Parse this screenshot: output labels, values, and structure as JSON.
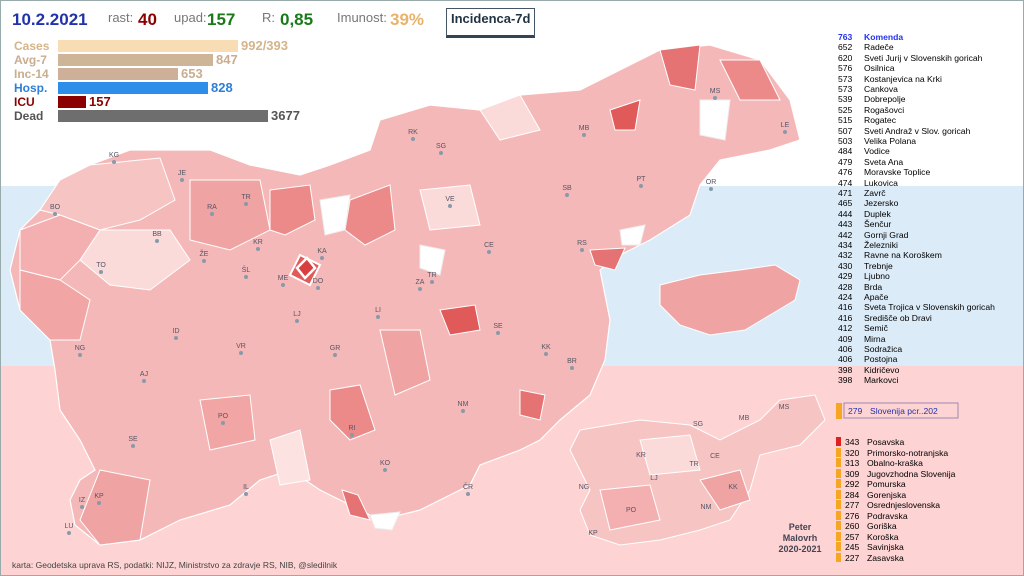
{
  "header": {
    "date": "10.2.2021",
    "rast_label": "rast:",
    "rast_value": "40",
    "upad_label": "upad:",
    "upad_value": "157",
    "r_label": "R:",
    "r_value": "0,85",
    "imunost_label": "Imunost:",
    "imunost_value": "39%",
    "incidence_button": "Incidenca-7d"
  },
  "stats": [
    {
      "label": "Cases",
      "value": "992/393",
      "fraction": 0.72,
      "color": "#f8ddb4",
      "label_color": "#d4b48a"
    },
    {
      "label": "Avg-7",
      "value": "847",
      "fraction": 0.62,
      "color": "#cfb598",
      "label_color": "#c9ad8e"
    },
    {
      "label": "Inc-14",
      "value": "653",
      "fraction": 0.48,
      "color": "#cdb097",
      "label_color": "#c9ad8e"
    },
    {
      "label": "Hosp.",
      "value": "828",
      "fraction": 0.6,
      "color": "#2d8de8",
      "label_color": "#2d7fd8"
    },
    {
      "label": "ICU",
      "value": "157",
      "fraction": 0.11,
      "color": "#8b0000",
      "label_color": "#8b0000"
    },
    {
      "label": "Dead",
      "value": "3677",
      "fraction": 0.84,
      "color": "#6e6e6e",
      "label_color": "#555555"
    }
  ],
  "municipalities_top": [
    {
      "n": "763",
      "name": "Komenda",
      "highlight": true
    },
    {
      "n": "652",
      "name": "Radeče"
    },
    {
      "n": "620",
      "name": "Sveti Jurij v Slovenskih goricah"
    },
    {
      "n": "576",
      "name": "Osilnica"
    },
    {
      "n": "573",
      "name": "Kostanjevica na Krki"
    },
    {
      "n": "573",
      "name": "Cankova"
    },
    {
      "n": "539",
      "name": "Dobrepolje"
    },
    {
      "n": "525",
      "name": "Rogašovci"
    },
    {
      "n": "515",
      "name": "Rogatec"
    },
    {
      "n": "507",
      "name": "Sveti Andraž v Slov. goricah"
    },
    {
      "n": "503",
      "name": "Velika Polana"
    },
    {
      "n": "484",
      "name": "Vodice"
    },
    {
      "n": "479",
      "name": "Sveta Ana"
    },
    {
      "n": "476",
      "name": "Moravske Toplice"
    },
    {
      "n": "474",
      "name": "Lukovica"
    },
    {
      "n": "471",
      "name": "Zavrč"
    },
    {
      "n": "465",
      "name": "Jezersko"
    },
    {
      "n": "444",
      "name": "Duplek"
    },
    {
      "n": "443",
      "name": "Šenčur"
    },
    {
      "n": "442",
      "name": "Gornji Grad"
    },
    {
      "n": "434",
      "name": "Železniki"
    },
    {
      "n": "432",
      "name": "Ravne na Koroškem"
    },
    {
      "n": "430",
      "name": "Trebnje"
    },
    {
      "n": "429",
      "name": "Ljubno"
    },
    {
      "n": "428",
      "name": "Brda"
    },
    {
      "n": "424",
      "name": "Apače"
    },
    {
      "n": "416",
      "name": "Sveta Trojica v Slovenskih goricah"
    },
    {
      "n": "416",
      "name": "Središče ob Dravi"
    },
    {
      "n": "412",
      "name": "Semič"
    },
    {
      "n": "409",
      "name": "Mirna"
    },
    {
      "n": "406",
      "name": "Sodražica"
    },
    {
      "n": "406",
      "name": "Postojna"
    },
    {
      "n": "398",
      "name": "Kidričevo"
    },
    {
      "n": "398",
      "name": "Markovci"
    }
  ],
  "national": {
    "n": "279",
    "name": "Slovenija pcr..202",
    "color": "#f6a623"
  },
  "regions": [
    {
      "n": "343",
      "name": "Posavska",
      "color": "#e0201c"
    },
    {
      "n": "320",
      "name": "Primorsko-notranjska",
      "color": "#f6a623"
    },
    {
      "n": "313",
      "name": "Obalno-kraška",
      "color": "#f6a623"
    },
    {
      "n": "309",
      "name": "Jugovzhodna Slovenija",
      "color": "#f6a623"
    },
    {
      "n": "292",
      "name": "Pomurska",
      "color": "#f6a623"
    },
    {
      "n": "284",
      "name": "Gorenjska",
      "color": "#f6a623"
    },
    {
      "n": "277",
      "name": "Osrednjeslovenska",
      "color": "#f6a623"
    },
    {
      "n": "276",
      "name": "Podravska",
      "color": "#f6a623"
    },
    {
      "n": "260",
      "name": "Goriška",
      "color": "#f6a623"
    },
    {
      "n": "257",
      "name": "Koroška",
      "color": "#f6a623"
    },
    {
      "n": "245",
      "name": "Savinjska",
      "color": "#f6a623"
    },
    {
      "n": "227",
      "name": "Zasavska",
      "color": "#f6a623"
    }
  ],
  "map_labels": [
    "KG",
    "JE",
    "RA",
    "TR",
    "BO",
    "BB",
    "KR",
    "KA",
    "VE",
    "SG",
    "RK",
    "MB",
    "MS",
    "LE",
    "PT",
    "SB",
    "OR",
    "CE",
    "RS",
    "ŽE",
    "ŠL",
    "ME",
    "DO",
    "TO",
    "ZA",
    "TR",
    "LJ",
    "LI",
    "SE",
    "ID",
    "NG",
    "VR",
    "GR",
    "KK",
    "BR",
    "AJ",
    "NM",
    "PO",
    "RI",
    "SE",
    "KO",
    "IL",
    "ČR",
    "IZ",
    "KP",
    "LU"
  ],
  "inset_labels": [
    "MS",
    "SG",
    "MB",
    "KR",
    "LJ",
    "TR",
    "CE",
    "KK",
    "NG",
    "PO",
    "NM",
    "KP"
  ],
  "credits": "karta: Geodetska uprava RS,  podatki: NIJZ, Ministrstvo za zdravje RS, NIB, @sledilnik",
  "author": [
    "Peter",
    "Malovrh",
    "2020-2021"
  ],
  "colors": {
    "accent_blue": "#2233aa",
    "map_stroke": "#ffffff",
    "light_pink": "#fbd9d9",
    "mid_pink": "#f0a3a3",
    "dark_pink": "#e57373",
    "highlight": "#e05a5a"
  }
}
